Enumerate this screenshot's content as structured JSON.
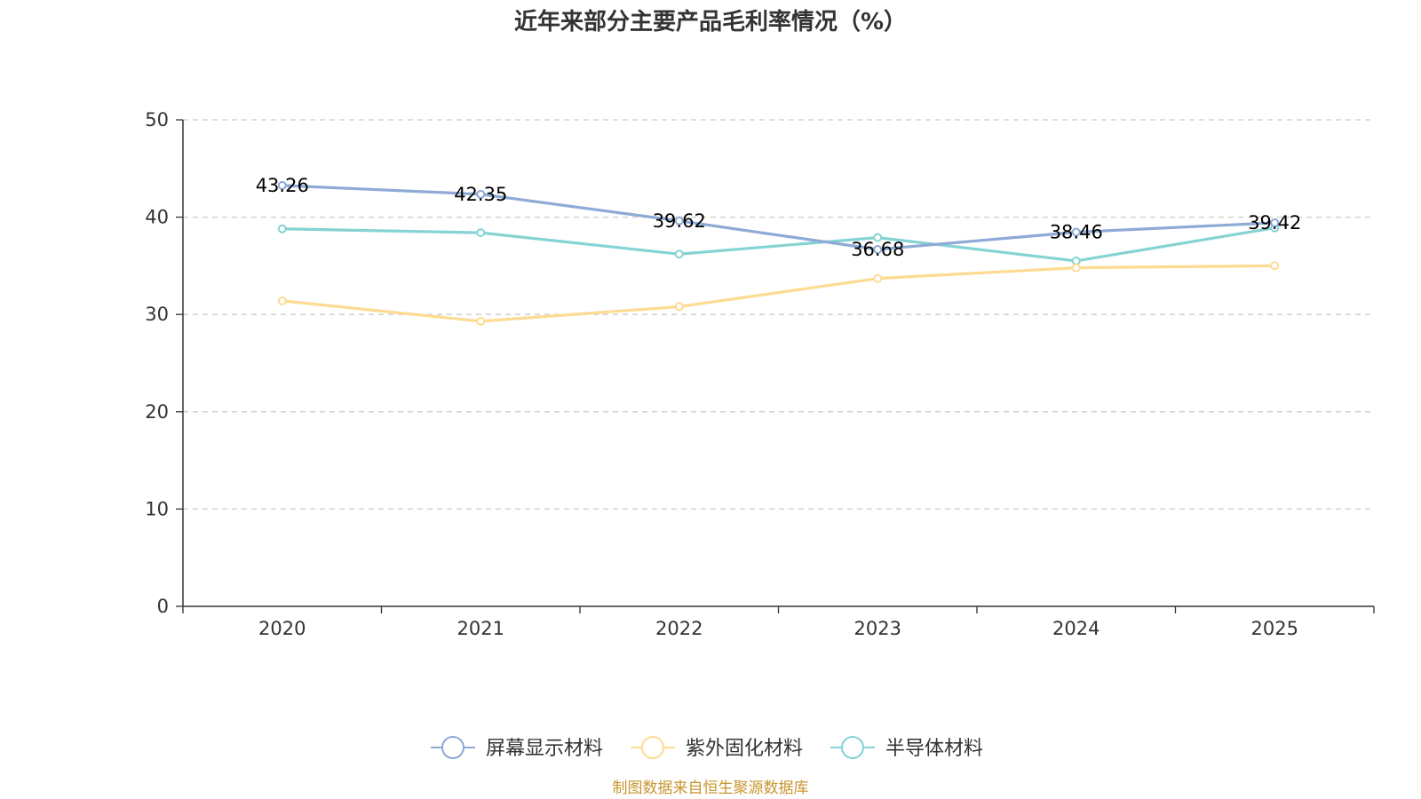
{
  "colors": {
    "axis": "#333333",
    "grid": "#cccccc",
    "source": "#c8952e"
  },
  "chart_data": {
    "type": "line",
    "title": "近年来部分主要产品毛利率情况（%）",
    "categories": [
      "2020",
      "2021",
      "2022",
      "2023",
      "2024",
      "2025"
    ],
    "ylim": [
      0,
      50
    ],
    "yticks": [
      0,
      10,
      20,
      30,
      40,
      50
    ],
    "grid": true,
    "legend_position": "bottom",
    "labeled_series": "屏幕显示材料",
    "series": [
      {
        "name": "屏幕显示材料",
        "color": "#8eaad6",
        "values": [
          43.26,
          42.35,
          39.62,
          36.68,
          38.46,
          39.42
        ],
        "labels": [
          "43.26",
          "42.35",
          "39.62",
          "36.68",
          "38.46",
          "39.42"
        ]
      },
      {
        "name": "紫外固化材料",
        "color": "#fddb92",
        "values": [
          31.4,
          29.3,
          30.8,
          33.7,
          34.8,
          35.0
        ]
      },
      {
        "name": "半导体材料",
        "color": "#85d3d3",
        "values": [
          38.8,
          38.4,
          36.2,
          37.9,
          35.5,
          38.9
        ]
      }
    ]
  },
  "source_note": "制图数据来自恒生聚源数据库"
}
